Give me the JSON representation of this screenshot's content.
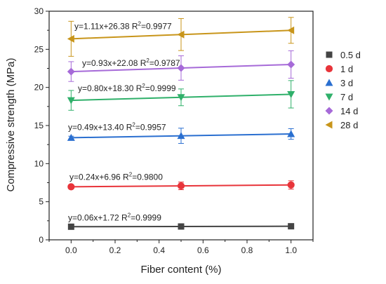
{
  "chart_data": {
    "type": "line",
    "xlabel": "Fiber content (%)",
    "ylabel": "Compressive strength (MPa)",
    "xlim": [
      -0.1,
      1.1
    ],
    "ylim": [
      0,
      30
    ],
    "xticks": [
      "0.0",
      "0.2",
      "0.4",
      "0.6",
      "0.8",
      "1.0"
    ],
    "yticks": [
      "0",
      "5",
      "10",
      "15",
      "20",
      "25",
      "30"
    ],
    "x": [
      0.0,
      0.5,
      1.0
    ],
    "legend_position": "right",
    "series": [
      {
        "name": "0.5 d",
        "values": [
          1.72,
          1.75,
          1.78
        ],
        "errors": [
          0.15,
          0.15,
          0.15
        ],
        "color": "#444444",
        "marker": "square",
        "fit": {
          "eq_prefix": "y=0.06x+1.72 R",
          "r2": "=0.9999"
        }
      },
      {
        "name": "1 d",
        "values": [
          6.96,
          7.08,
          7.2
        ],
        "errors": [
          0.25,
          0.5,
          0.55
        ],
        "color": "#e8343a",
        "marker": "circle",
        "fit": {
          "eq_prefix": "y=0.24x+6.96 R",
          "r2": "=0.9800"
        }
      },
      {
        "name": "3 d",
        "values": [
          13.4,
          13.65,
          13.89
        ],
        "errors": [
          0.2,
          1.0,
          0.7
        ],
        "color": "#2a6fd0",
        "marker": "triangle-up",
        "fit": {
          "eq_prefix": "y=0.49x+13.40 R",
          "r2": "=0.9957"
        }
      },
      {
        "name": "7 d",
        "values": [
          18.3,
          18.7,
          19.1
        ],
        "errors": [
          1.3,
          1.1,
          1.8
        ],
        "color": "#2fb06a",
        "marker": "triangle-down",
        "fit": {
          "eq_prefix": "y=0.80x+18.30 R",
          "r2": "=0.9999"
        }
      },
      {
        "name": "14 d",
        "values": [
          22.08,
          22.55,
          23.01
        ],
        "errors": [
          1.3,
          1.6,
          1.8
        ],
        "color": "#a66ad8",
        "marker": "diamond",
        "fit": {
          "eq_prefix": "y=0.93x+22.08 R",
          "r2": "=0.9787"
        }
      },
      {
        "name": "28 d",
        "values": [
          26.38,
          26.94,
          27.49
        ],
        "errors": [
          2.3,
          2.1,
          1.7
        ],
        "color": "#c8951a",
        "marker": "triangle-left",
        "fit": {
          "eq_prefix": "y=1.11x+26.38 R",
          "r2": "=0.9977"
        }
      }
    ]
  }
}
